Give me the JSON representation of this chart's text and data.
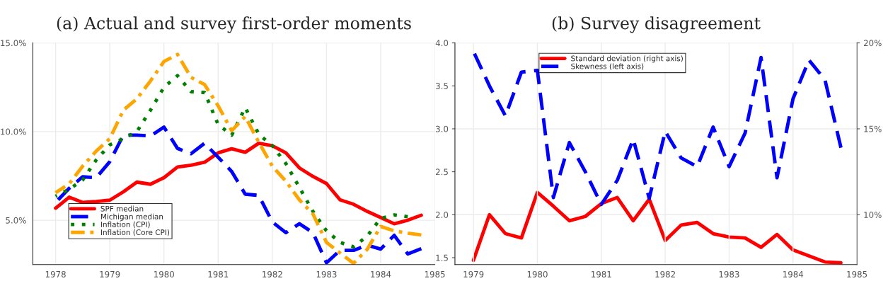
{
  "chart_data": [
    {
      "type": "line",
      "title": "(a) Actual and survey first-order moments",
      "x": [
        1978,
        1978.25,
        1978.5,
        1978.75,
        1979,
        1979.25,
        1979.5,
        1979.75,
        1980,
        1980.25,
        1980.5,
        1980.75,
        1981,
        1981.25,
        1981.5,
        1981.75,
        1982,
        1982.25,
        1982.5,
        1982.75,
        1983,
        1983.25,
        1983.5,
        1983.75,
        1984,
        1984.25,
        1984.5,
        1984.75
      ],
      "series": [
        {
          "name": "SPF median",
          "color": "#ff0000",
          "line_style": "solid",
          "values": [
            5.68,
            6.3,
            6.0,
            6.05,
            6.13,
            6.6,
            7.15,
            7.03,
            7.4,
            8.0,
            8.1,
            8.27,
            8.8,
            9.03,
            8.83,
            9.34,
            9.2,
            8.8,
            7.95,
            7.47,
            7.07,
            6.15,
            5.9,
            5.5,
            5.15,
            4.8,
            5.0,
            5.28
          ]
        },
        {
          "name": "Michigan median",
          "color": "#0000ff",
          "line_style": "dashed",
          "values": [
            6.0,
            6.8,
            7.45,
            7.4,
            8.3,
            9.8,
            9.8,
            9.75,
            10.25,
            9.05,
            8.75,
            9.34,
            8.55,
            7.75,
            6.47,
            6.4,
            4.9,
            4.3,
            4.8,
            4.3,
            2.6,
            3.3,
            3.3,
            3.6,
            3.37,
            4.15,
            3.1,
            3.4
          ]
        },
        {
          "name": "Inflation (CPI)",
          "color": "#008000",
          "line_style": "dotted",
          "values": [
            6.35,
            6.75,
            7.27,
            8.4,
            9.25,
            9.6,
            10.0,
            11.2,
            12.5,
            13.15,
            12.25,
            12.2,
            10.4,
            9.8,
            11.35,
            9.85,
            9.2,
            8.2,
            6.85,
            5.5,
            4.4,
            3.75,
            3.5,
            4.1,
            5.1,
            5.3,
            5.2,
            null
          ]
        },
        {
          "name": "Inflation (Core CPI)",
          "color": "#ffa500",
          "line_style": "dashdot",
          "values": [
            6.55,
            7.05,
            8.05,
            8.9,
            9.6,
            11.2,
            11.85,
            12.85,
            13.95,
            14.35,
            13.05,
            12.65,
            11.45,
            10.05,
            10.85,
            9.4,
            8.05,
            7.2,
            6.15,
            5.35,
            3.75,
            3.15,
            2.57,
            3.35,
            4.65,
            4.4,
            4.27,
            4.17
          ]
        }
      ],
      "xlim": [
        1977.58,
        1985
      ],
      "xticks": [
        1978,
        1979,
        1980,
        1981,
        1982,
        1983,
        1984,
        1985
      ],
      "ylim": [
        2.5,
        15.0
      ],
      "yticks": [
        {
          "value": 5,
          "label": "5.0%"
        },
        {
          "value": 10,
          "label": "10.0%"
        },
        {
          "value": 15,
          "label": "15.0%"
        }
      ],
      "grid": true,
      "legend": "bottom left"
    },
    {
      "type": "line",
      "title": "(b) Survey disagreement",
      "x": [
        1979,
        1979.25,
        1979.5,
        1979.75,
        1980,
        1980.25,
        1980.5,
        1980.75,
        1981,
        1981.25,
        1981.5,
        1981.75,
        1982,
        1982.25,
        1982.5,
        1982.75,
        1983,
        1983.25,
        1983.5,
        1983.75,
        1984,
        1984.25,
        1984.5,
        1984.75
      ],
      "series": [
        {
          "name": "Standard deviation (right axis)",
          "color": "#ff0000",
          "line_style": "solid",
          "axis": "y2",
          "values": [
            7.35,
            10.0,
            8.9,
            8.65,
            11.3,
            10.5,
            9.65,
            9.9,
            10.65,
            11.0,
            9.65,
            10.9,
            8.5,
            9.4,
            9.55,
            8.9,
            8.7,
            8.65,
            8.1,
            8.85,
            7.95,
            7.6,
            7.25,
            7.2
          ]
        },
        {
          "name": "Skewness (left axis)",
          "color": "#0000ff",
          "line_style": "dashed",
          "values": [
            3.9,
            3.5,
            3.15,
            3.66,
            3.68,
            2.2,
            2.84,
            2.5,
            2.12,
            2.4,
            2.88,
            2.19,
            2.97,
            2.66,
            2.56,
            3.02,
            2.56,
            2.95,
            3.83,
            2.43,
            3.35,
            3.8,
            3.57,
            2.78
          ]
        }
      ],
      "xlim": [
        1978.71,
        1985
      ],
      "xticks": [
        1979,
        1980,
        1981,
        1982,
        1983,
        1984,
        1985
      ],
      "ylim": [
        1.42,
        4.0
      ],
      "yticks": [
        {
          "value": 1.5,
          "label": "1.5"
        },
        {
          "value": 2.0,
          "label": "2.0"
        },
        {
          "value": 2.5,
          "label": "2.5"
        },
        {
          "value": 3.0,
          "label": "3.0"
        },
        {
          "value": 3.5,
          "label": "3.5"
        },
        {
          "value": 4.0,
          "label": "4.0"
        }
      ],
      "y2lim": [
        7.1,
        20.0
      ],
      "y2ticks": [
        {
          "value": 10,
          "label": "10%"
        },
        {
          "value": 15,
          "label": "15%"
        },
        {
          "value": 20,
          "label": "20%"
        }
      ],
      "grid": true,
      "legend": "top"
    }
  ]
}
